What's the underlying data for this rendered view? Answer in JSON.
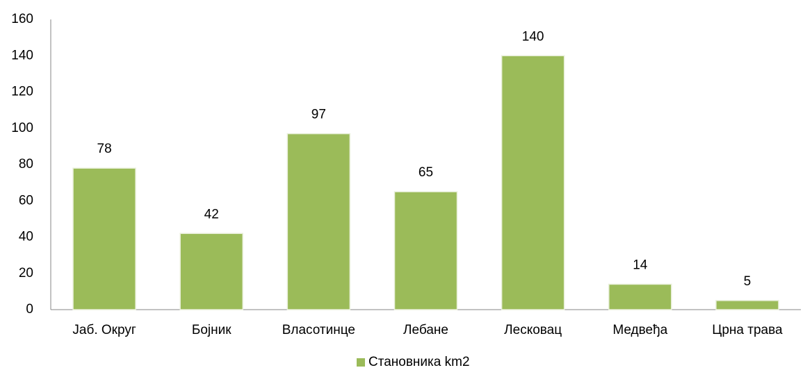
{
  "chart_data": {
    "type": "bar",
    "categories": [
      "Јаб. Округ",
      "Бојник",
      "Власотинце",
      "Лебане",
      "Лесковац",
      "Медвеђа",
      "Црна трава"
    ],
    "series": [
      {
        "name": "Становника km2",
        "color": "#9bbb59",
        "values": [
          78,
          42,
          97,
          65,
          140,
          14,
          5
        ]
      }
    ],
    "ylim": [
      0,
      160
    ],
    "yticks": [
      0,
      20,
      40,
      60,
      80,
      100,
      120,
      140,
      160
    ],
    "grid": false,
    "legend": "bottom"
  }
}
